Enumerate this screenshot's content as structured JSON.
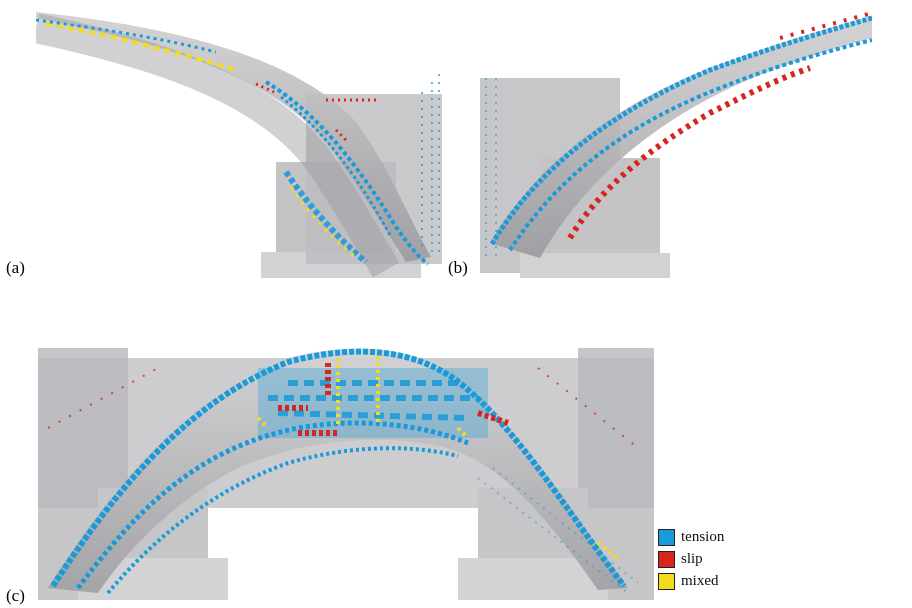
{
  "figure": {
    "panels": [
      {
        "id": "a",
        "label": "(a)"
      },
      {
        "id": "b",
        "label": "(b)"
      },
      {
        "id": "c",
        "label": "(c)"
      }
    ],
    "legend": [
      {
        "label": "tension",
        "color": "#1a9ad9"
      },
      {
        "label": "slip",
        "color": "#d7261e"
      },
      {
        "label": "mixed",
        "color": "#f2dc1b"
      }
    ],
    "colors": {
      "block": "#b7b7b9",
      "block_dark": "#8f8f93",
      "background": "#ffffff"
    }
  }
}
